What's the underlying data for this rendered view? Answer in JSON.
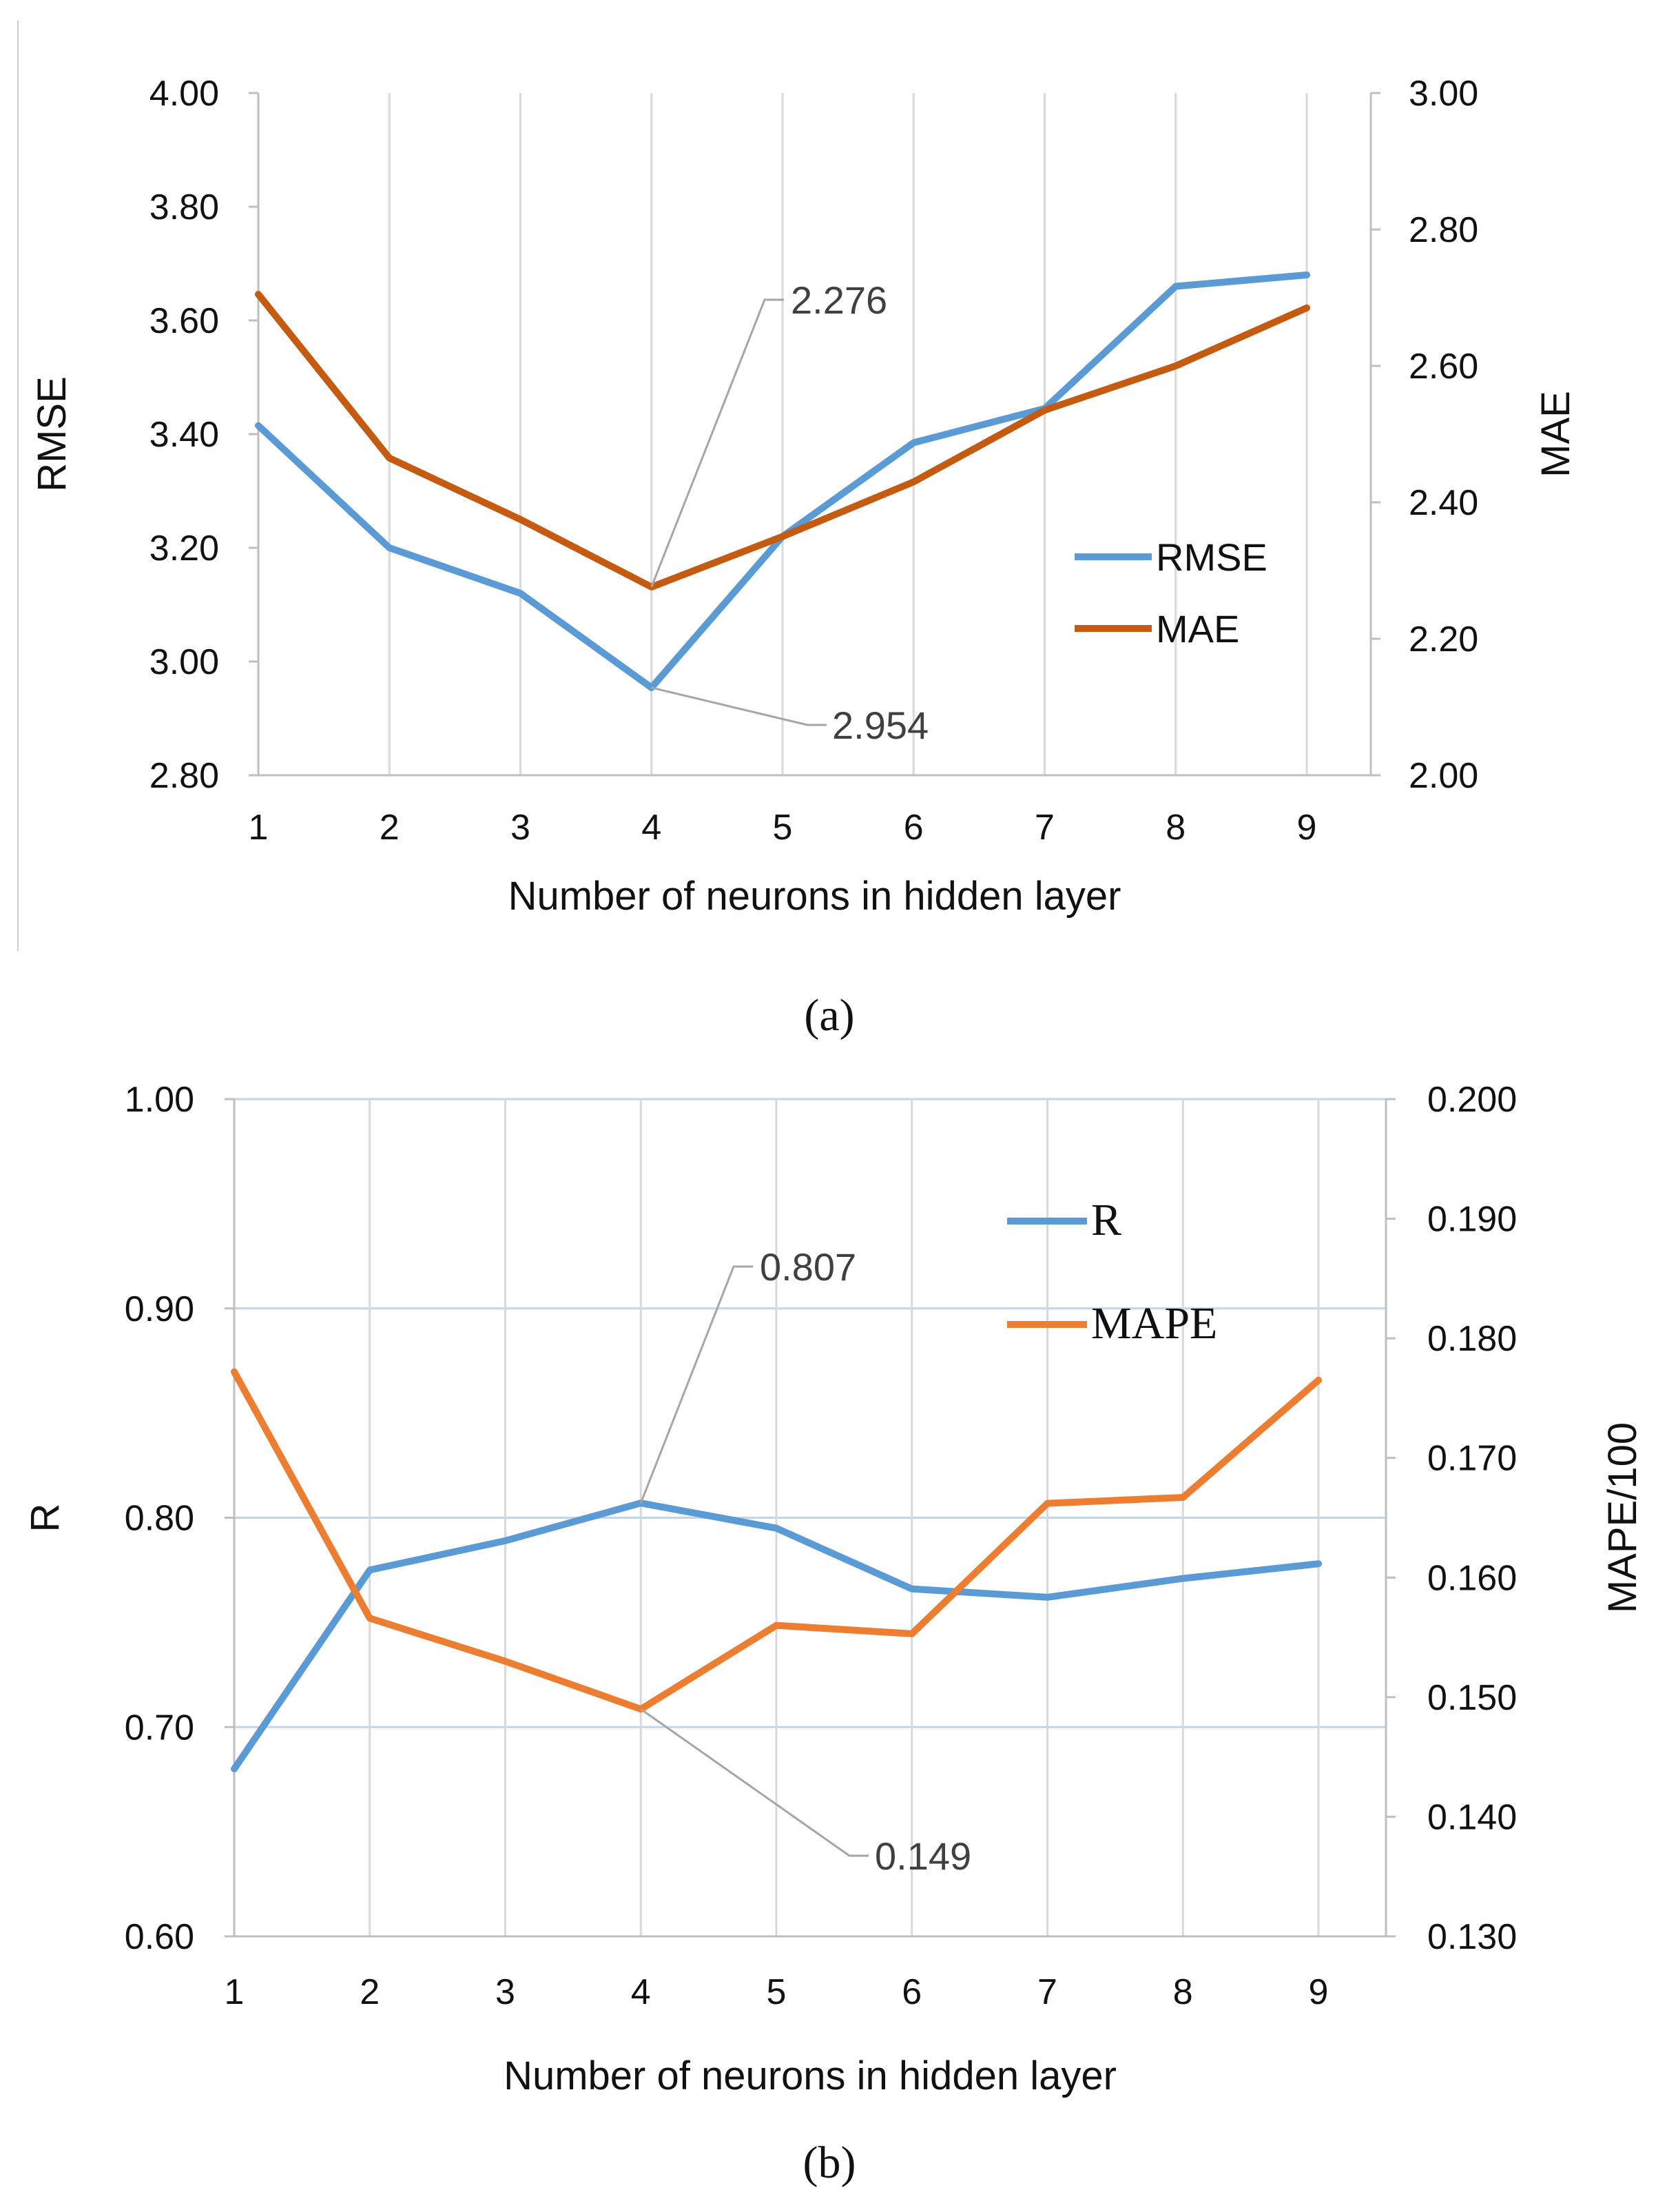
{
  "figure": {
    "panels": [
      {
        "caption": "(a)"
      },
      {
        "caption": "(b)"
      }
    ]
  },
  "chart_data": [
    {
      "type": "line",
      "panel": "(a)",
      "title": "",
      "xlabel": "Number of neurons in hidden layer",
      "ylabel": "RMSE",
      "y2label": "MAE",
      "x": [
        1,
        2,
        3,
        4,
        5,
        6,
        7,
        8,
        9
      ],
      "xticks": [
        "1",
        "2",
        "3",
        "4",
        "5",
        "6",
        "7",
        "8",
        "9"
      ],
      "ylim": [
        2.8,
        4.0
      ],
      "yticks": [
        "2.80",
        "3.00",
        "3.20",
        "3.40",
        "3.60",
        "3.80",
        "4.00"
      ],
      "y2lim": [
        2.0,
        3.0
      ],
      "y2ticks": [
        "2.00",
        "2.20",
        "2.40",
        "2.60",
        "2.80",
        "3.00"
      ],
      "grid": "vertical",
      "legend": "right",
      "series": [
        {
          "name": "RMSE",
          "axis": "left",
          "color": "#5B9BD5",
          "values": [
            3.415,
            3.2,
            3.12,
            2.954,
            3.22,
            3.385,
            3.445,
            3.66,
            3.68
          ]
        },
        {
          "name": "MAE",
          "axis": "right",
          "color": "#C55A11",
          "values": [
            2.705,
            2.465,
            2.375,
            2.276,
            2.35,
            2.43,
            2.535,
            2.6,
            2.685
          ]
        }
      ],
      "annotations": [
        {
          "text": "2.276",
          "series": "MAE",
          "x": 4
        },
        {
          "text": "2.954",
          "series": "RMSE",
          "x": 4
        }
      ]
    },
    {
      "type": "line",
      "panel": "(b)",
      "title": "",
      "xlabel": "Number of neurons in hidden layer",
      "ylabel": "R",
      "y2label": "MAPE/100",
      "x": [
        1,
        2,
        3,
        4,
        5,
        6,
        7,
        8,
        9
      ],
      "xticks": [
        "1",
        "2",
        "3",
        "4",
        "5",
        "6",
        "7",
        "8",
        "9"
      ],
      "ylim": [
        0.6,
        1.0
      ],
      "yticks": [
        "0.60",
        "0.70",
        "0.80",
        "0.90",
        "1.00"
      ],
      "y2lim": [
        0.13,
        0.2
      ],
      "y2ticks": [
        "0.130",
        "0.140",
        "0.150",
        "0.160",
        "0.170",
        "0.180",
        "0.190",
        "0.200"
      ],
      "grid": "both",
      "legend": "top-right",
      "series": [
        {
          "name": "R",
          "axis": "left",
          "color": "#5B9BD5",
          "values": [
            0.68,
            0.775,
            0.789,
            0.807,
            0.795,
            0.766,
            0.762,
            0.771,
            0.778
          ]
        },
        {
          "name": "MAPE",
          "axis": "right",
          "color": "#ED7D31",
          "values": [
            0.1772,
            0.1566,
            0.153,
            0.149,
            0.156,
            0.1553,
            0.1662,
            0.1667,
            0.1765
          ]
        }
      ],
      "annotations": [
        {
          "text": "0.807",
          "series": "R",
          "x": 4
        },
        {
          "text": "0.149",
          "series": "MAPE",
          "x": 4
        }
      ]
    }
  ]
}
